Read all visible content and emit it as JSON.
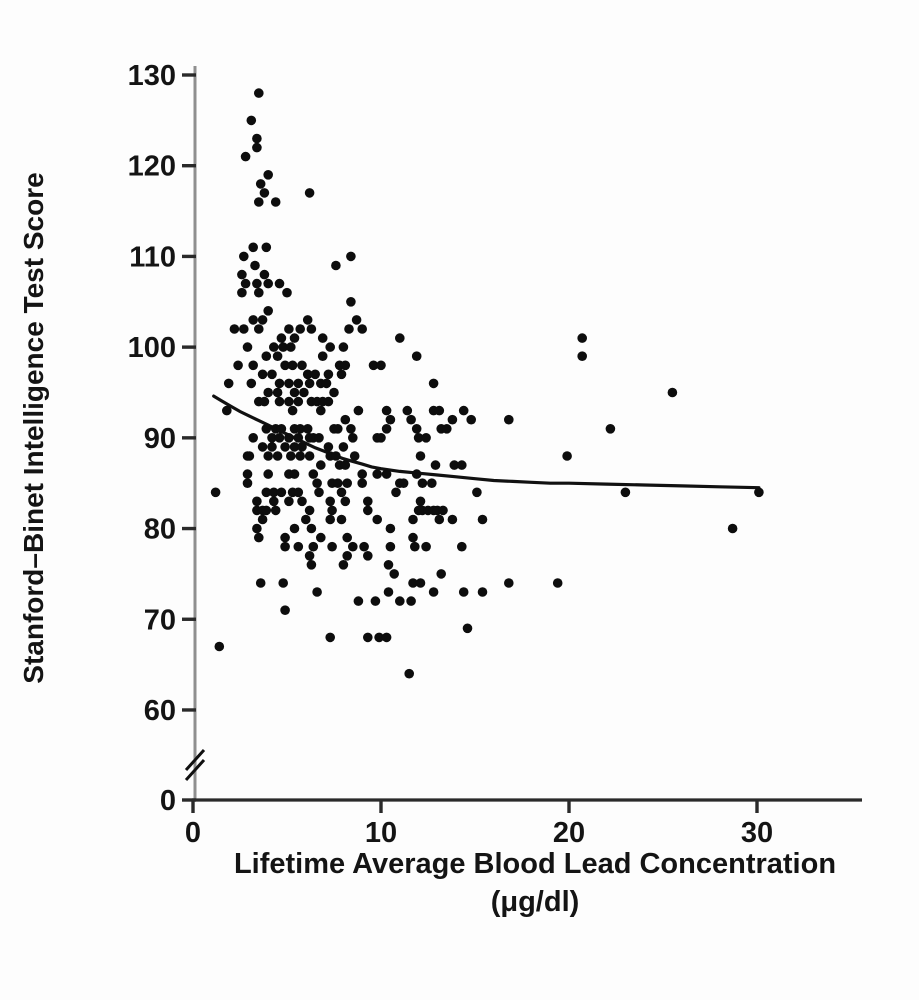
{
  "figure": {
    "description": "Scatter plot with nonparametric smoothed curve: IQ score versus lifetime average blood lead concentration, y-axis broken between 0 and 60"
  },
  "chart_data": {
    "type": "scatter",
    "title": "",
    "xlabel_line1": "Lifetime Average Blood Lead Concentration",
    "xlabel_line2": "(μg/dl)",
    "ylabel": "Stanford–Binet Intelligence Test Score",
    "x_ticks": [
      0,
      10,
      20,
      30
    ],
    "y_ticks": [
      130,
      120,
      110,
      100,
      90,
      80,
      70,
      60,
      0
    ],
    "xlim": [
      0,
      35.6
    ],
    "ylim": [
      60,
      130
    ],
    "y_axis_break": true,
    "grid": false,
    "legend": null,
    "colors": {
      "point": "#0d0d0d",
      "curve": "#111111",
      "x_axis": "#2a2a2a",
      "y_axis": "#8f8f8f",
      "tick": "#2a2a2a"
    },
    "points": [
      [
        3.5,
        128
      ],
      [
        3.1,
        125
      ],
      [
        3.4,
        123
      ],
      [
        3.4,
        122
      ],
      [
        2.8,
        121
      ],
      [
        4.0,
        119
      ],
      [
        3.6,
        118
      ],
      [
        3.8,
        117
      ],
      [
        6.2,
        117
      ],
      [
        3.5,
        116
      ],
      [
        4.4,
        116
      ],
      [
        3.2,
        111
      ],
      [
        3.9,
        111
      ],
      [
        2.7,
        110
      ],
      [
        8.4,
        110
      ],
      [
        3.3,
        109
      ],
      [
        7.6,
        109
      ],
      [
        2.6,
        108
      ],
      [
        3.8,
        108
      ],
      [
        2.8,
        107
      ],
      [
        3.4,
        107
      ],
      [
        4.0,
        107
      ],
      [
        4.6,
        107
      ],
      [
        2.6,
        106
      ],
      [
        3.5,
        106
      ],
      [
        5.0,
        106
      ],
      [
        4.0,
        104
      ],
      [
        8.4,
        105
      ],
      [
        3.2,
        103
      ],
      [
        3.7,
        103
      ],
      [
        6.1,
        103
      ],
      [
        8.7,
        103
      ],
      [
        2.2,
        102
      ],
      [
        2.7,
        102
      ],
      [
        3.5,
        102
      ],
      [
        5.1,
        102
      ],
      [
        5.7,
        102
      ],
      [
        6.3,
        102
      ],
      [
        8.3,
        102
      ],
      [
        9.0,
        102
      ],
      [
        4.7,
        101
      ],
      [
        5.4,
        101
      ],
      [
        6.9,
        101
      ],
      [
        11.0,
        101
      ],
      [
        20.7,
        101
      ],
      [
        2.9,
        100
      ],
      [
        4.3,
        100
      ],
      [
        4.8,
        100
      ],
      [
        5.2,
        100
      ],
      [
        7.3,
        100
      ],
      [
        8.0,
        100
      ],
      [
        3.9,
        99
      ],
      [
        4.5,
        99
      ],
      [
        6.9,
        99
      ],
      [
        11.9,
        99
      ],
      [
        20.7,
        99
      ],
      [
        2.4,
        98
      ],
      [
        3.2,
        98
      ],
      [
        4.9,
        98
      ],
      [
        5.3,
        98
      ],
      [
        5.8,
        98
      ],
      [
        7.8,
        98
      ],
      [
        8.1,
        98
      ],
      [
        9.6,
        98
      ],
      [
        10.0,
        98
      ],
      [
        3.7,
        97
      ],
      [
        4.2,
        97
      ],
      [
        6.1,
        97
      ],
      [
        6.5,
        97
      ],
      [
        7.2,
        97
      ],
      [
        7.9,
        97
      ],
      [
        1.9,
        96
      ],
      [
        3.1,
        96
      ],
      [
        4.6,
        96
      ],
      [
        5.1,
        96
      ],
      [
        5.6,
        96
      ],
      [
        6.2,
        96
      ],
      [
        6.8,
        96
      ],
      [
        7.1,
        96
      ],
      [
        12.8,
        96
      ],
      [
        4.0,
        95
      ],
      [
        4.5,
        95
      ],
      [
        5.4,
        95
      ],
      [
        5.9,
        95
      ],
      [
        7.5,
        95
      ],
      [
        25.5,
        95
      ],
      [
        3.5,
        94
      ],
      [
        3.8,
        94
      ],
      [
        4.6,
        94
      ],
      [
        5.1,
        94
      ],
      [
        5.6,
        94
      ],
      [
        6.3,
        94
      ],
      [
        6.6,
        94
      ],
      [
        6.9,
        94
      ],
      [
        7.2,
        94
      ],
      [
        1.8,
        93
      ],
      [
        5.3,
        93
      ],
      [
        6.8,
        93
      ],
      [
        8.8,
        93
      ],
      [
        10.3,
        93
      ],
      [
        11.4,
        93
      ],
      [
        12.8,
        93
      ],
      [
        13.1,
        93
      ],
      [
        14.4,
        93
      ],
      [
        8.1,
        92
      ],
      [
        10.5,
        92
      ],
      [
        11.6,
        92
      ],
      [
        13.8,
        92
      ],
      [
        14.8,
        92
      ],
      [
        16.8,
        92
      ],
      [
        3.9,
        91
      ],
      [
        4.4,
        91
      ],
      [
        4.7,
        91
      ],
      [
        5.4,
        91
      ],
      [
        5.7,
        91
      ],
      [
        6.1,
        91
      ],
      [
        7.5,
        91
      ],
      [
        7.7,
        91
      ],
      [
        8.4,
        91
      ],
      [
        10.3,
        91
      ],
      [
        11.9,
        91
      ],
      [
        13.2,
        91
      ],
      [
        13.5,
        91
      ],
      [
        22.2,
        91
      ],
      [
        3.2,
        90
      ],
      [
        4.2,
        90
      ],
      [
        4.6,
        90
      ],
      [
        5.1,
        90
      ],
      [
        5.6,
        90
      ],
      [
        6.2,
        90
      ],
      [
        6.4,
        90
      ],
      [
        6.7,
        90
      ],
      [
        8.5,
        90
      ],
      [
        9.8,
        90
      ],
      [
        10.0,
        90
      ],
      [
        12.0,
        90
      ],
      [
        12.4,
        90
      ],
      [
        3.7,
        89
      ],
      [
        4.2,
        89
      ],
      [
        4.9,
        89
      ],
      [
        5.4,
        89
      ],
      [
        5.8,
        89
      ],
      [
        7.2,
        89
      ],
      [
        8.0,
        89
      ],
      [
        2.9,
        88
      ],
      [
        3.0,
        88
      ],
      [
        4.0,
        88
      ],
      [
        4.5,
        88
      ],
      [
        5.2,
        88
      ],
      [
        5.7,
        88
      ],
      [
        6.2,
        88
      ],
      [
        7.3,
        88
      ],
      [
        7.6,
        88
      ],
      [
        8.6,
        88
      ],
      [
        12.1,
        88
      ],
      [
        19.9,
        88
      ],
      [
        6.8,
        87
      ],
      [
        7.8,
        87
      ],
      [
        8.1,
        87
      ],
      [
        12.9,
        87
      ],
      [
        13.9,
        87
      ],
      [
        14.3,
        87
      ],
      [
        2.9,
        86
      ],
      [
        4.0,
        86
      ],
      [
        5.1,
        86
      ],
      [
        5.4,
        86
      ],
      [
        6.4,
        86
      ],
      [
        9.0,
        86
      ],
      [
        9.8,
        86
      ],
      [
        10.3,
        86
      ],
      [
        11.9,
        86
      ],
      [
        2.9,
        85
      ],
      [
        6.6,
        85
      ],
      [
        7.4,
        85
      ],
      [
        7.7,
        85
      ],
      [
        8.2,
        85
      ],
      [
        9.0,
        85
      ],
      [
        11.0,
        85
      ],
      [
        11.2,
        85
      ],
      [
        12.2,
        85
      ],
      [
        12.7,
        85
      ],
      [
        1.2,
        84
      ],
      [
        3.9,
        84
      ],
      [
        4.3,
        84
      ],
      [
        4.7,
        84
      ],
      [
        5.3,
        84
      ],
      [
        5.6,
        84
      ],
      [
        6.7,
        84
      ],
      [
        7.9,
        84
      ],
      [
        10.8,
        84
      ],
      [
        15.1,
        84
      ],
      [
        23.0,
        84
      ],
      [
        30.1,
        84
      ],
      [
        3.4,
        83
      ],
      [
        4.3,
        83
      ],
      [
        5.1,
        83
      ],
      [
        5.8,
        83
      ],
      [
        7.3,
        83
      ],
      [
        8.1,
        83
      ],
      [
        9.3,
        83
      ],
      [
        12.1,
        83
      ],
      [
        3.4,
        82
      ],
      [
        3.7,
        82
      ],
      [
        3.9,
        82
      ],
      [
        4.4,
        82
      ],
      [
        6.2,
        82
      ],
      [
        7.4,
        82
      ],
      [
        9.3,
        82
      ],
      [
        12.0,
        82
      ],
      [
        12.2,
        82
      ],
      [
        12.5,
        82
      ],
      [
        12.8,
        82
      ],
      [
        13.0,
        82
      ],
      [
        13.3,
        82
      ],
      [
        3.7,
        81
      ],
      [
        6.0,
        81
      ],
      [
        7.3,
        81
      ],
      [
        7.9,
        81
      ],
      [
        9.8,
        81
      ],
      [
        11.7,
        81
      ],
      [
        13.1,
        81
      ],
      [
        13.8,
        81
      ],
      [
        15.4,
        81
      ],
      [
        3.4,
        80
      ],
      [
        5.4,
        80
      ],
      [
        6.3,
        80
      ],
      [
        10.5,
        80
      ],
      [
        28.7,
        80
      ],
      [
        3.5,
        79
      ],
      [
        4.9,
        79
      ],
      [
        6.8,
        79
      ],
      [
        8.2,
        79
      ],
      [
        11.7,
        79
      ],
      [
        4.9,
        78
      ],
      [
        5.6,
        78
      ],
      [
        6.4,
        78
      ],
      [
        7.4,
        78
      ],
      [
        8.5,
        78
      ],
      [
        9.1,
        78
      ],
      [
        10.5,
        78
      ],
      [
        11.8,
        78
      ],
      [
        12.4,
        78
      ],
      [
        14.3,
        78
      ],
      [
        6.2,
        77
      ],
      [
        8.2,
        77
      ],
      [
        9.3,
        77
      ],
      [
        6.3,
        76
      ],
      [
        8.0,
        76
      ],
      [
        10.4,
        76
      ],
      [
        10.7,
        75
      ],
      [
        13.2,
        75
      ],
      [
        3.6,
        74
      ],
      [
        4.8,
        74
      ],
      [
        11.7,
        74
      ],
      [
        12.1,
        74
      ],
      [
        16.8,
        74
      ],
      [
        19.4,
        74
      ],
      [
        6.6,
        73
      ],
      [
        10.4,
        73
      ],
      [
        12.8,
        73
      ],
      [
        14.4,
        73
      ],
      [
        15.4,
        73
      ],
      [
        8.8,
        72
      ],
      [
        9.7,
        72
      ],
      [
        11.0,
        72
      ],
      [
        11.6,
        72
      ],
      [
        4.9,
        71
      ],
      [
        7.3,
        68
      ],
      [
        9.3,
        68
      ],
      [
        9.9,
        68
      ],
      [
        10.3,
        68
      ],
      [
        14.6,
        69
      ],
      [
        1.4,
        67
      ],
      [
        11.5,
        64
      ]
    ],
    "smooth_curve": [
      [
        1.1,
        94.6
      ],
      [
        1.5,
        94.1
      ],
      [
        2,
        93.5
      ],
      [
        2.5,
        92.9
      ],
      [
        3,
        92.4
      ],
      [
        3.5,
        91.9
      ],
      [
        4,
        91.4
      ],
      [
        4.5,
        90.9
      ],
      [
        5,
        90.4
      ],
      [
        5.5,
        89.9
      ],
      [
        6,
        89.4
      ],
      [
        6.5,
        88.9
      ],
      [
        7,
        88.5
      ],
      [
        7.5,
        88.1
      ],
      [
        8,
        87.7
      ],
      [
        8.5,
        87.4
      ],
      [
        9,
        87.1
      ],
      [
        9.5,
        86.8
      ],
      [
        10,
        86.6
      ],
      [
        11,
        86.3
      ],
      [
        12,
        86.1
      ],
      [
        13,
        85.9
      ],
      [
        14,
        85.7
      ],
      [
        15,
        85.5
      ],
      [
        16,
        85.3
      ],
      [
        17,
        85.2
      ],
      [
        18,
        85.1
      ],
      [
        19,
        85.0
      ],
      [
        20,
        85.0
      ],
      [
        22,
        84.9
      ],
      [
        24,
        84.8
      ],
      [
        26,
        84.7
      ],
      [
        28,
        84.6
      ],
      [
        30.1,
        84.5
      ]
    ]
  }
}
